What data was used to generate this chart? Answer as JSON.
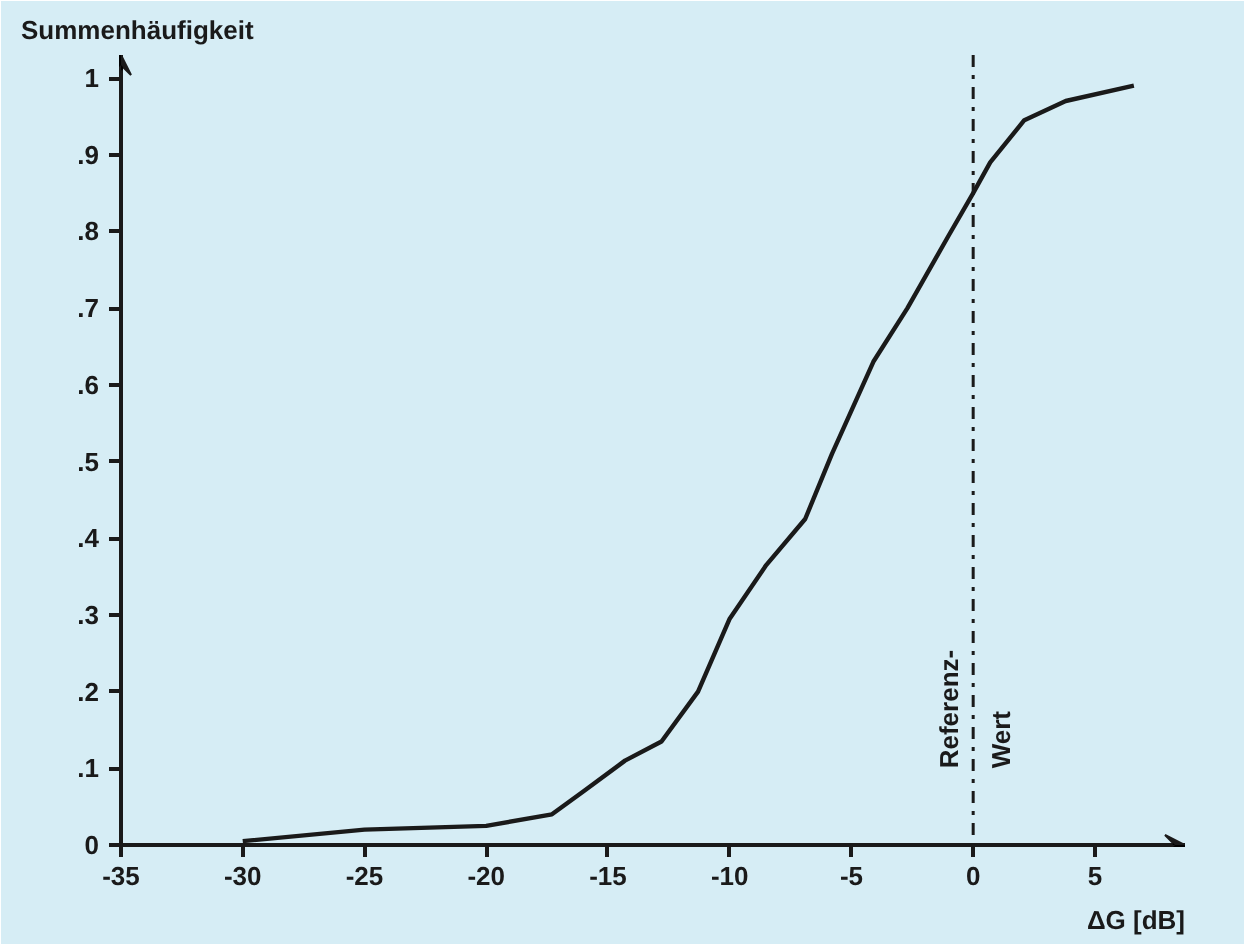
{
  "chart_data": {
    "type": "line",
    "ylabel": "Summenhäufigkeit",
    "xlabel": "ΔG [dB]",
    "x": [
      -30,
      -25,
      -20,
      -17.3,
      -16,
      -14.3,
      -12.8,
      -11.3,
      -10,
      -8.5,
      -6.9,
      -5.8,
      -4.1,
      -2.7,
      -1,
      0,
      0.7,
      2.1,
      3.8,
      6.6
    ],
    "series": [
      {
        "color": "#1a1a1a",
        "values": [
          0.005,
          0.02,
          0.025,
          0.04,
          0.07,
          0.11,
          0.135,
          0.2,
          0.295,
          0.365,
          0.425,
          0.51,
          0.63,
          0.7,
          0.795,
          0.85,
          0.89,
          0.945,
          0.97,
          0.99
        ]
      }
    ],
    "xlim": [
      -35,
      8.7
    ],
    "ylim": [
      0,
      1.03
    ],
    "xticks": [
      -35,
      -30,
      -25,
      -20,
      -15,
      -10,
      -5,
      0,
      5
    ],
    "yticks": [
      0,
      {
        "value": 0.1,
        "label": ".1"
      },
      {
        "value": 0.2,
        "label": ".2"
      },
      {
        "value": 0.3,
        "label": ".3"
      },
      {
        "value": 0.4,
        "label": ".4"
      },
      {
        "value": 0.5,
        "label": ".5"
      },
      {
        "value": 0.6,
        "label": ".6"
      },
      {
        "value": 0.7,
        "label": ".7"
      },
      {
        "value": 0.8,
        "label": ".8"
      },
      {
        "value": 0.9,
        "label": ".9"
      },
      1
    ],
    "ref_lines": [
      {
        "axis": "x",
        "value": 0,
        "label": "Referenz-\nWert",
        "line_style": "dashdot",
        "color": "#1a1a1a"
      }
    ],
    "marker": "none",
    "line_style": "solid"
  }
}
